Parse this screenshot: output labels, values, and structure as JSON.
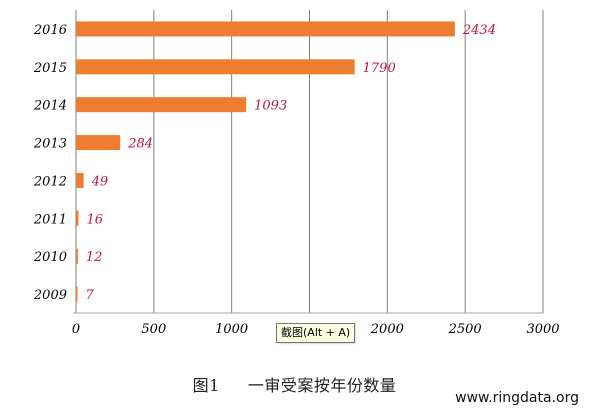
{
  "chart_data": {
    "type": "bar",
    "orientation": "horizontal",
    "categories": [
      "2016",
      "2015",
      "2014",
      "2013",
      "2012",
      "2011",
      "2010",
      "2009"
    ],
    "values": [
      2434,
      1790,
      1093,
      284,
      49,
      16,
      12,
      7
    ],
    "data_labels": [
      "2434",
      "1790",
      "1093",
      "284",
      "49",
      "16",
      "12",
      "7"
    ],
    "x_ticks": [
      "0",
      "500",
      "1000",
      "1500",
      "2000",
      "2500",
      "3000"
    ],
    "xlim": [
      0,
      3000
    ],
    "grid": true,
    "legend": "none",
    "bar_color": "#ed7d31",
    "data_label_color": "#c0143c",
    "gridline_color": "#7f7f7f"
  },
  "caption": {
    "figure_number": "图1",
    "title": "一审受案按年份数量"
  },
  "watermark": "www.ringdata.org",
  "tooltip": "截图(Alt + A)"
}
